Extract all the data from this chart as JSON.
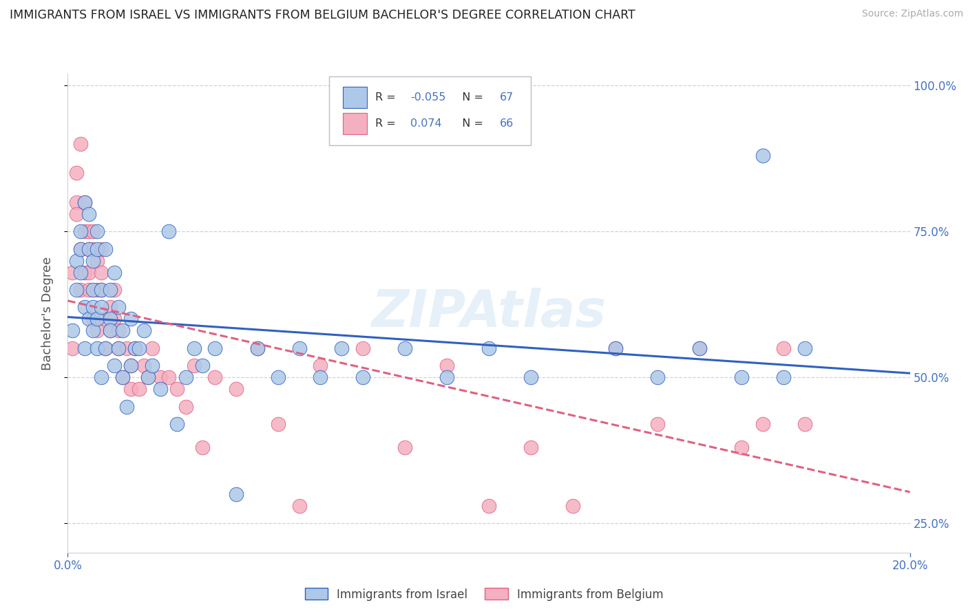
{
  "title": "IMMIGRANTS FROM ISRAEL VS IMMIGRANTS FROM BELGIUM BACHELOR'S DEGREE CORRELATION CHART",
  "source": "Source: ZipAtlas.com",
  "ylabel": "Bachelor's Degree",
  "x_min": 0.0,
  "x_max": 0.2,
  "y_min": 0.2,
  "y_max": 1.02,
  "y_ticks": [
    0.25,
    0.5,
    0.75,
    1.0
  ],
  "y_tick_labels": [
    "25.0%",
    "50.0%",
    "75.0%",
    "100.0%"
  ],
  "legend_r_israel": "-0.055",
  "legend_n_israel": "67",
  "legend_r_belgium": "0.074",
  "legend_n_belgium": "66",
  "color_israel": "#adc8e8",
  "color_belgium": "#f4afc0",
  "line_color_israel": "#3060c0",
  "line_color_belgium": "#e06080",
  "background_color": "#ffffff",
  "grid_color": "#d0d0d8",
  "israel_x": [
    0.001,
    0.002,
    0.002,
    0.003,
    0.003,
    0.003,
    0.004,
    0.004,
    0.004,
    0.005,
    0.005,
    0.005,
    0.006,
    0.006,
    0.006,
    0.006,
    0.007,
    0.007,
    0.007,
    0.007,
    0.008,
    0.008,
    0.008,
    0.009,
    0.009,
    0.01,
    0.01,
    0.01,
    0.011,
    0.011,
    0.012,
    0.012,
    0.013,
    0.013,
    0.014,
    0.015,
    0.015,
    0.016,
    0.017,
    0.018,
    0.019,
    0.02,
    0.022,
    0.024,
    0.026,
    0.028,
    0.03,
    0.032,
    0.035,
    0.04,
    0.045,
    0.05,
    0.055,
    0.06,
    0.065,
    0.07,
    0.08,
    0.09,
    0.1,
    0.11,
    0.13,
    0.14,
    0.15,
    0.16,
    0.165,
    0.17,
    0.175
  ],
  "israel_y": [
    0.58,
    0.65,
    0.7,
    0.72,
    0.68,
    0.75,
    0.62,
    0.8,
    0.55,
    0.72,
    0.6,
    0.78,
    0.65,
    0.58,
    0.62,
    0.7,
    0.55,
    0.72,
    0.6,
    0.75,
    0.65,
    0.5,
    0.62,
    0.72,
    0.55,
    0.65,
    0.6,
    0.58,
    0.68,
    0.52,
    0.62,
    0.55,
    0.58,
    0.5,
    0.45,
    0.6,
    0.52,
    0.55,
    0.55,
    0.58,
    0.5,
    0.52,
    0.48,
    0.75,
    0.42,
    0.5,
    0.55,
    0.52,
    0.55,
    0.3,
    0.55,
    0.5,
    0.55,
    0.5,
    0.55,
    0.5,
    0.55,
    0.5,
    0.55,
    0.5,
    0.55,
    0.5,
    0.55,
    0.5,
    0.88,
    0.5,
    0.55
  ],
  "belgium_x": [
    0.001,
    0.001,
    0.002,
    0.002,
    0.002,
    0.003,
    0.003,
    0.003,
    0.004,
    0.004,
    0.004,
    0.005,
    0.005,
    0.005,
    0.005,
    0.006,
    0.006,
    0.006,
    0.007,
    0.007,
    0.007,
    0.008,
    0.008,
    0.008,
    0.009,
    0.009,
    0.01,
    0.01,
    0.011,
    0.011,
    0.012,
    0.012,
    0.013,
    0.014,
    0.015,
    0.015,
    0.016,
    0.017,
    0.018,
    0.019,
    0.02,
    0.022,
    0.024,
    0.026,
    0.028,
    0.03,
    0.032,
    0.035,
    0.04,
    0.045,
    0.05,
    0.055,
    0.06,
    0.07,
    0.08,
    0.09,
    0.1,
    0.11,
    0.12,
    0.13,
    0.14,
    0.15,
    0.16,
    0.165,
    0.17,
    0.175
  ],
  "belgium_y": [
    0.55,
    0.68,
    0.8,
    0.85,
    0.78,
    0.72,
    0.9,
    0.65,
    0.75,
    0.68,
    0.8,
    0.75,
    0.72,
    0.68,
    0.65,
    0.72,
    0.6,
    0.75,
    0.7,
    0.65,
    0.58,
    0.72,
    0.65,
    0.68,
    0.6,
    0.55,
    0.62,
    0.58,
    0.65,
    0.6,
    0.55,
    0.58,
    0.5,
    0.55,
    0.48,
    0.52,
    0.55,
    0.48,
    0.52,
    0.5,
    0.55,
    0.5,
    0.5,
    0.48,
    0.45,
    0.52,
    0.38,
    0.5,
    0.48,
    0.55,
    0.42,
    0.28,
    0.52,
    0.55,
    0.38,
    0.52,
    0.28,
    0.38,
    0.28,
    0.55,
    0.42,
    0.55,
    0.38,
    0.42,
    0.55,
    0.42
  ]
}
